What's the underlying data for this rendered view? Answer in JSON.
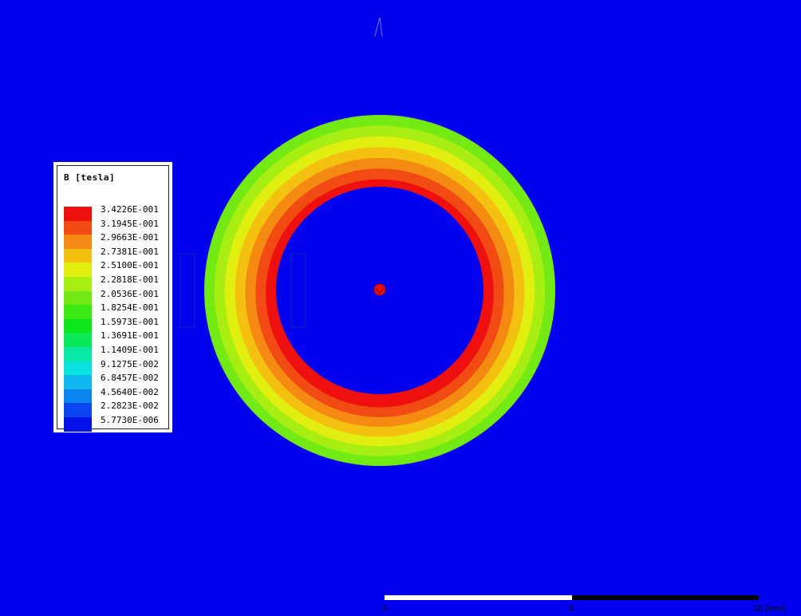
{
  "legend": {
    "title": "B [tesla]",
    "entries": [
      {
        "label": "3.4226E-001",
        "color": "#ee0f0f"
      },
      {
        "label": "3.1945E-001",
        "color": "#f24a13"
      },
      {
        "label": "2.9663E-001",
        "color": "#f58a12"
      },
      {
        "label": "2.7381E-001",
        "color": "#f4c111"
      },
      {
        "label": "2.5100E-001",
        "color": "#e0ee10"
      },
      {
        "label": "2.2818E-001",
        "color": "#a8ee12"
      },
      {
        "label": "2.0536E-001",
        "color": "#74ea14"
      },
      {
        "label": "1.8254E-001",
        "color": "#3ce813"
      },
      {
        "label": "1.5973E-001",
        "color": "#0de61b"
      },
      {
        "label": "1.3691E-001",
        "color": "#0ae95a"
      },
      {
        "label": "1.1409E-001",
        "color": "#0ae8a5"
      },
      {
        "label": "9.1275E-002",
        "color": "#0ae4e0"
      },
      {
        "label": "6.8457E-002",
        "color": "#0fb8ee"
      },
      {
        "label": "4.5640E-002",
        "color": "#0c84f0"
      },
      {
        "label": "2.2823E-002",
        "color": "#0c46f0"
      },
      {
        "label": "5.7730E-006",
        "color": "#0410e8"
      }
    ]
  },
  "scale_bar": {
    "ticks": [
      "0",
      "5",
      "10 (mm)"
    ]
  },
  "colors": {
    "background": "#0202ef",
    "ring_outer": "#74ea14",
    "ring_inner": "#ee0f0f"
  },
  "field_plot": {
    "band_order_outer_to_inner": [
      6,
      5,
      4,
      3,
      2,
      1,
      0
    ]
  }
}
